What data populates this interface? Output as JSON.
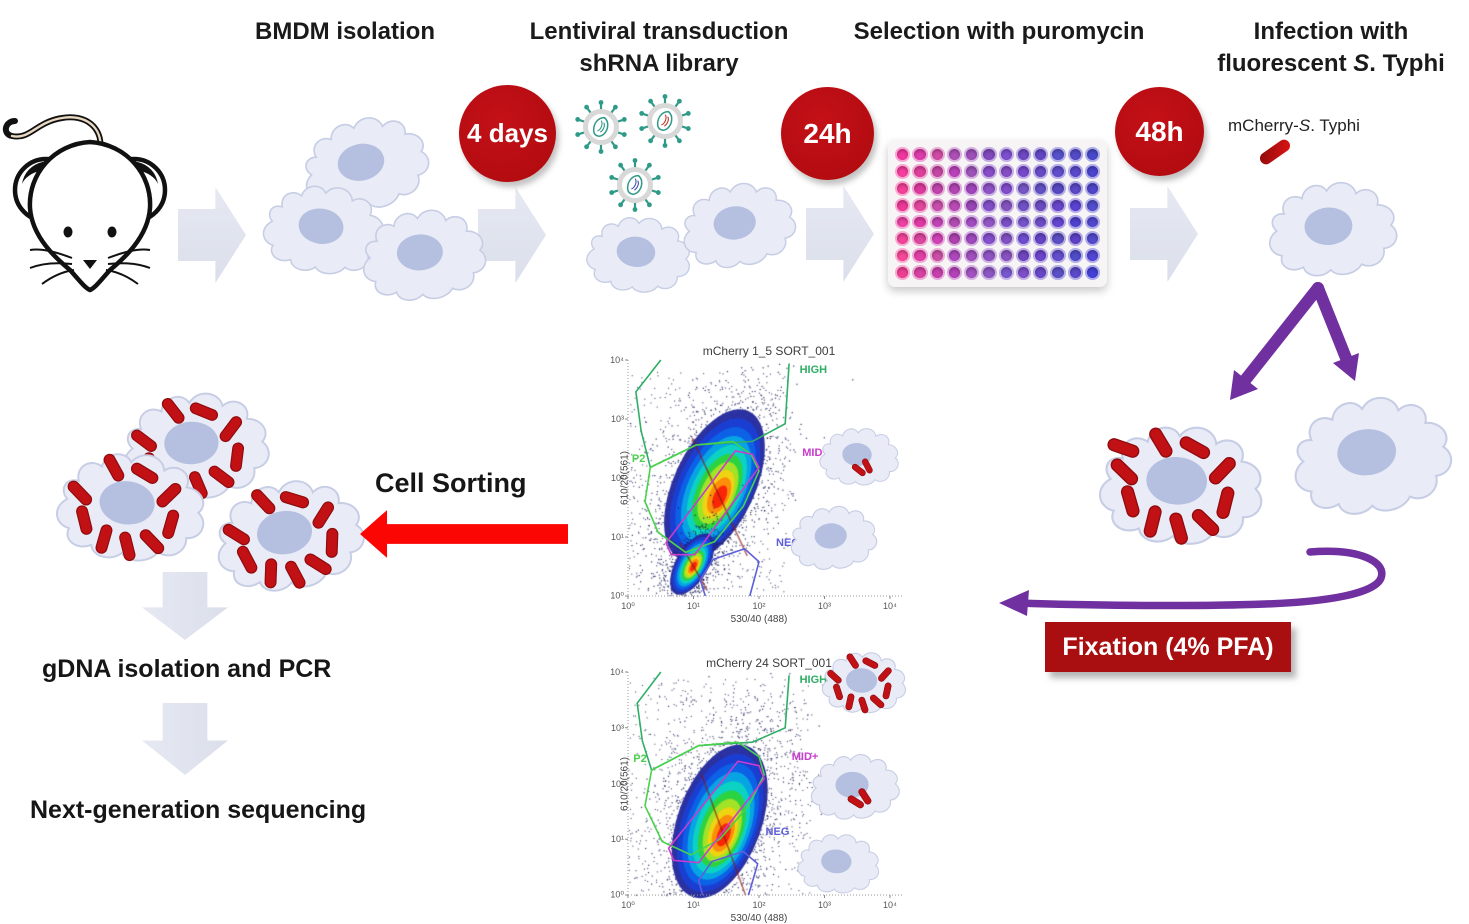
{
  "headers": {
    "step1": "BMDM isolation",
    "step2_line1": "Lentiviral transduction",
    "step2_line2": "shRNA library",
    "step3": "Selection with puromycin",
    "step4_line1": "Infection with",
    "step4_line2_pre": "fluorescent ",
    "step4_line2_italic": "S",
    "step4_line2_post": ". Typhi"
  },
  "badges": {
    "transduction": "4 days",
    "selection": "24h",
    "infection": "48h"
  },
  "labels": {
    "mcherry_pre": "mCherry-",
    "mcherry_italic": "S",
    "mcherry_post": ". Typhi",
    "cell_sorting": "Cell Sorting",
    "gdna": "gDNA isolation and PCR",
    "ngs": "Next-generation sequencing",
    "fixation": "Fixation (4% PFA)"
  },
  "colors": {
    "badge_red": "#b20b10",
    "fixation_red": "#a90f10",
    "arrow_red": "#fb0603",
    "purple": "#7030a0",
    "arrow_gray": "#dbdfeb",
    "cell_body": "#e9ecf7",
    "cell_border": "#c6cde4",
    "nucleus": "#b5bfdf",
    "bacteria": "#c21114",
    "virus_teal": "#2f9a88",
    "plate_gradient": [
      "#f23f9b",
      "#8a50c4",
      "#4b48cf"
    ]
  },
  "chart_data": [
    {
      "type": "density_scatter",
      "title": "mCherry 1_5 SORT_001",
      "xlabel": "530/40 (488)",
      "ylabel": "610/20(561)",
      "xticks": [
        "10⁰",
        "10¹",
        "10²",
        "10³",
        "10⁴"
      ],
      "yticks": [
        "10⁰",
        "10¹",
        "10²",
        "10³",
        "10⁴"
      ],
      "xlim_log": [
        0,
        4
      ],
      "ylim_log": [
        0,
        4
      ],
      "gates": [
        {
          "name": "HIGH",
          "color": "#2fae66",
          "closed": false,
          "label_pos": [
            0.655,
            0.015
          ],
          "points": [
            [
              0.125,
              0.0
            ],
            [
              0.03,
              0.135
            ],
            [
              0.05,
              0.3
            ],
            [
              0.085,
              0.455
            ],
            [
              0.26,
              0.36
            ],
            [
              0.475,
              0.345
            ],
            [
              0.6,
              0.27
            ],
            [
              0.615,
              0.015
            ]
          ]
        },
        {
          "name": "P2",
          "color": "#49d24b",
          "closed": true,
          "label_pos": [
            0.015,
            0.395
          ],
          "points": [
            [
              0.085,
              0.455
            ],
            [
              0.26,
              0.36
            ],
            [
              0.4,
              0.345
            ],
            [
              0.47,
              0.4
            ],
            [
              0.5,
              0.47
            ],
            [
              0.44,
              0.62
            ],
            [
              0.33,
              0.77
            ],
            [
              0.22,
              0.815
            ],
            [
              0.115,
              0.73
            ],
            [
              0.065,
              0.6
            ]
          ]
        },
        {
          "name": "MID+",
          "color": "#c93ccc",
          "closed": true,
          "label_pos": [
            0.665,
            0.37
          ],
          "points": [
            [
              0.145,
              0.775
            ],
            [
              0.41,
              0.385
            ],
            [
              0.475,
              0.4
            ],
            [
              0.5,
              0.455
            ],
            [
              0.255,
              0.825
            ],
            [
              0.165,
              0.825
            ]
          ]
        },
        {
          "name": "NEG",
          "color": "#5e5edb",
          "closed": false,
          "label_pos": [
            0.565,
            0.75
          ],
          "points": [
            [
              0.295,
              1.0
            ],
            [
              0.275,
              0.93
            ],
            [
              0.325,
              0.845
            ],
            [
              0.445,
              0.8
            ],
            [
              0.5,
              0.855
            ],
            [
              0.465,
              1.0
            ]
          ]
        }
      ],
      "density_blobs": [
        {
          "cx": 0.33,
          "cy": 0.47,
          "rx": 0.155,
          "ry": 0.345,
          "rot": 25,
          "core": [
            0.35,
            0.42
          ],
          "weight": 1
        },
        {
          "cx": 0.245,
          "cy": 0.135,
          "rx": 0.062,
          "ry": 0.145,
          "rot": 30,
          "core": [
            0.25,
            0.125
          ],
          "weight": 0.45
        }
      ],
      "noise": {
        "count": 500,
        "x": [
          0.0,
          0.62
        ],
        "y": [
          0.05,
          0.98
        ]
      }
    },
    {
      "type": "density_scatter",
      "title": "mCherry 24 SORT_001",
      "xlabel": "530/40 (488)",
      "ylabel": "610/20(561)",
      "xticks": [
        "10⁰",
        "10¹",
        "10²",
        "10³",
        "10⁴"
      ],
      "yticks": [
        "10⁰",
        "10¹",
        "10²",
        "10³",
        "10⁴"
      ],
      "xlim_log": [
        0,
        4
      ],
      "ylim_log": [
        0,
        4
      ],
      "gates": [
        {
          "name": "HIGH",
          "color": "#2fae66",
          "closed": false,
          "label_pos": [
            0.655,
            0.01
          ],
          "points": [
            [
              0.125,
              0.0
            ],
            [
              0.035,
              0.14
            ],
            [
              0.055,
              0.31
            ],
            [
              0.09,
              0.44
            ],
            [
              0.27,
              0.33
            ],
            [
              0.475,
              0.315
            ],
            [
              0.6,
              0.25
            ],
            [
              0.615,
              0.015
            ]
          ]
        },
        {
          "name": "P2",
          "color": "#49d24b",
          "closed": true,
          "label_pos": [
            0.02,
            0.365
          ],
          "points": [
            [
              0.09,
              0.44
            ],
            [
              0.27,
              0.33
            ],
            [
              0.42,
              0.315
            ],
            [
              0.5,
              0.38
            ],
            [
              0.52,
              0.46
            ],
            [
              0.46,
              0.6
            ],
            [
              0.35,
              0.75
            ],
            [
              0.24,
              0.82
            ],
            [
              0.13,
              0.76
            ],
            [
              0.065,
              0.6
            ]
          ]
        },
        {
          "name": "MID+",
          "color": "#c93ccc",
          "closed": true,
          "label_pos": [
            0.625,
            0.355
          ],
          "points": [
            [
              0.155,
              0.79
            ],
            [
              0.42,
              0.4
            ],
            [
              0.5,
              0.42
            ],
            [
              0.52,
              0.48
            ],
            [
              0.27,
              0.855
            ],
            [
              0.175,
              0.845
            ]
          ]
        },
        {
          "name": "NEG",
          "color": "#5e5edb",
          "closed": false,
          "label_pos": [
            0.525,
            0.69
          ],
          "points": [
            [
              0.285,
              1.0
            ],
            [
              0.27,
              0.935
            ],
            [
              0.32,
              0.85
            ],
            [
              0.44,
              0.805
            ],
            [
              0.495,
              0.86
            ],
            [
              0.46,
              1.0
            ]
          ]
        }
      ],
      "density_blobs": [
        {
          "cx": 0.35,
          "cy": 0.33,
          "rx": 0.16,
          "ry": 0.36,
          "rot": 20,
          "core": [
            0.365,
            0.27
          ],
          "weight": 1
        }
      ],
      "noise": {
        "count": 750,
        "x": [
          0.0,
          0.7
        ],
        "y": [
          0.02,
          1.0
        ]
      }
    }
  ]
}
